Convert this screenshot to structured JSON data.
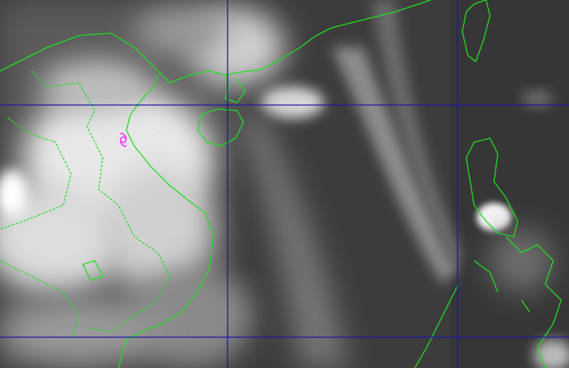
{
  "map": {
    "type": "infrared satellite image",
    "colors": {
      "background": "#404040",
      "grid": "#1a1aa8",
      "coastline": "#22dd22",
      "typhoon_symbol": "#ff33ff",
      "cloud": "#f2f2f2"
    },
    "icons": [
      "typhoon-symbol-icon"
    ]
  }
}
